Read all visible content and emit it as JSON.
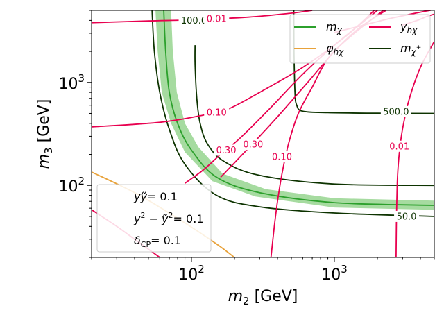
{
  "chart_data": {
    "type": "line",
    "title": "",
    "xlabel": "m_2 [GeV]",
    "ylabel": "m_3 [GeV]",
    "xscale": "log",
    "yscale": "log",
    "xlim": [
      20,
      5000
    ],
    "ylim": [
      20,
      5000
    ],
    "x_ticks": [
      {
        "value": 100,
        "base": "10",
        "exp": "2"
      },
      {
        "value": 1000,
        "base": "10",
        "exp": "3"
      }
    ],
    "y_ticks": [
      {
        "value": 100,
        "base": "10",
        "exp": "2"
      },
      {
        "value": 1000,
        "base": "10",
        "exp": "3"
      }
    ],
    "grid": false,
    "legend_position": "top-right",
    "legend": [
      {
        "label": "m_χ",
        "color": "#2ca02c"
      },
      {
        "label": "y_hχ",
        "color": "#e8004f"
      },
      {
        "label": "φ_hχ",
        "color": "#e8a23a"
      },
      {
        "label": "m_χ+",
        "color": "#0d3300"
      }
    ],
    "info_box": {
      "position": "lower-left",
      "lines": [
        "yỹ = 0.1",
        "y² − ỹ² = 0.1",
        "δ_CP = 0.1"
      ]
    },
    "colors": {
      "m_chi": "#2ca02c",
      "m_chi_band": "#a6dba0",
      "y_hchi": "#e8004f",
      "phi_hchi": "#e8a23a",
      "m_chi_plus": "#0d3300"
    },
    "series": [
      {
        "name": "m_χ",
        "kind": "band",
        "points": [
          [
            64,
            5000
          ],
          [
            66,
            2000
          ],
          [
            70,
            800
          ],
          [
            80,
            400
          ],
          [
            100,
            220
          ],
          [
            150,
            120
          ],
          [
            300,
            85
          ],
          [
            1000,
            68
          ],
          [
            5000,
            64
          ]
        ],
        "lower": [
          [
            56,
            5000
          ],
          [
            58,
            2000
          ],
          [
            62,
            800
          ],
          [
            72,
            400
          ],
          [
            90,
            210
          ],
          [
            140,
            110
          ],
          [
            280,
            78
          ],
          [
            1000,
            61
          ],
          [
            5000,
            58
          ]
        ],
        "upper": [
          [
            72,
            5000
          ],
          [
            74,
            2000
          ],
          [
            79,
            800
          ],
          [
            90,
            400
          ],
          [
            112,
            235
          ],
          [
            165,
            130
          ],
          [
            330,
            92
          ],
          [
            1000,
            75
          ],
          [
            5000,
            71
          ]
        ]
      },
      {
        "name": "m_χ+",
        "level": "50.0",
        "points": [
          [
            53,
            5000
          ],
          [
            55,
            2000
          ],
          [
            60,
            800
          ],
          [
            70,
            350
          ],
          [
            90,
            160
          ],
          [
            150,
            80
          ],
          [
            300,
            62
          ],
          [
            1000,
            54
          ],
          [
            5000,
            50
          ]
        ],
        "label_at": [
          3200,
          50
        ]
      },
      {
        "name": "m_χ+",
        "level": "100.0",
        "points": [
          [
            106,
            2300
          ],
          [
            106,
            1500
          ],
          [
            109,
            700
          ],
          [
            115,
            400
          ],
          [
            130,
            250
          ],
          [
            170,
            170
          ],
          [
            300,
            125
          ],
          [
            1000,
            103
          ],
          [
            5000,
            100
          ]
        ],
        "label_at": [
          104,
          4000
        ]
      },
      {
        "name": "m_χ+",
        "level": "500.0",
        "points": [
          [
            520,
            5000
          ],
          [
            522,
            2000
          ],
          [
            530,
            800
          ],
          [
            545,
            600
          ],
          [
            600,
            525
          ],
          [
            900,
            508
          ],
          [
            2000,
            502
          ],
          [
            5000,
            500
          ]
        ],
        "label_at": [
          2700,
          520
        ]
      },
      {
        "name": "y_hχ",
        "level": "0.01",
        "points": [
          [
            20,
            3800
          ],
          [
            50,
            3950
          ],
          [
            100,
            4050
          ],
          [
            250,
            4300
          ],
          [
            500,
            4700
          ],
          [
            700,
            5000
          ]
        ],
        "label_at": [
          150,
          4150
        ]
      },
      {
        "name": "y_hχ",
        "level": "0.10",
        "points": [
          [
            20,
            370
          ],
          [
            60,
            410
          ],
          [
            120,
            480
          ],
          [
            180,
            550
          ],
          [
            300,
            800
          ],
          [
            600,
            1400
          ],
          [
            1200,
            2800
          ],
          [
            1900,
            5000
          ]
        ],
        "label_at": [
          150,
          510
        ]
      },
      {
        "name": "y_hχ",
        "level": "0.30",
        "points": [
          [
            90,
            105
          ],
          [
            120,
            140
          ],
          [
            160,
            200
          ],
          [
            220,
            290
          ],
          [
            350,
            550
          ],
          [
            600,
            1200
          ],
          [
            1000,
            2300
          ],
          [
            1600,
            3900
          ],
          [
            2000,
            5000
          ]
        ],
        "label_at": [
          175,
          220
        ]
      },
      {
        "name": "y_hχ",
        "level": "0.30",
        "points": [
          [
            160,
            120
          ],
          [
            220,
            190
          ],
          [
            300,
            300
          ],
          [
            420,
            500
          ],
          [
            650,
            1000
          ],
          [
            1000,
            2000
          ],
          [
            1500,
            3400
          ],
          [
            2300,
            5000
          ]
        ],
        "label_at": [
          270,
          250
        ]
      },
      {
        "name": "y_hχ",
        "level": "0.10",
        "points": [
          [
            360,
            20
          ],
          [
            380,
            40
          ],
          [
            400,
            70
          ],
          [
            430,
            130
          ],
          [
            480,
            260
          ],
          [
            560,
            500
          ],
          [
            700,
            900
          ],
          [
            900,
            1700
          ],
          [
            1300,
            2800
          ],
          [
            2200,
            5000
          ]
        ],
        "label_at": [
          430,
          190
        ]
      },
      {
        "name": "y_hχ",
        "level": "0.01",
        "points": [
          [
            2700,
            20
          ],
          [
            2720,
            50
          ],
          [
            2750,
            100
          ],
          [
            2800,
            160
          ],
          [
            2900,
            260
          ],
          [
            3050,
            400
          ],
          [
            3350,
            700
          ],
          [
            4000,
            1400
          ],
          [
            5000,
            2500
          ]
        ],
        "label_at": [
          2850,
          240
        ]
      },
      {
        "name": "y_hχ",
        "level": "",
        "points": [
          [
            20,
            58
          ],
          [
            30,
            40
          ],
          [
            40,
            30
          ],
          [
            60,
            20
          ]
        ]
      },
      {
        "name": "y_hχ",
        "level": "",
        "points": [
          [
            1000,
            3050
          ],
          [
            1600,
            3600
          ],
          [
            2500,
            4200
          ],
          [
            4000,
            4800
          ],
          [
            4700,
            5000
          ]
        ]
      },
      {
        "name": "y_hχ",
        "level": "",
        "points": [
          [
            3000,
            3600
          ],
          [
            3800,
            4000
          ],
          [
            4500,
            4400
          ],
          [
            5000,
            4600
          ]
        ]
      },
      {
        "name": "φ_hχ",
        "points": [
          [
            20,
            135
          ],
          [
            40,
            85
          ],
          [
            80,
            48
          ],
          [
            150,
            27
          ],
          [
            200,
            20
          ]
        ]
      }
    ]
  }
}
